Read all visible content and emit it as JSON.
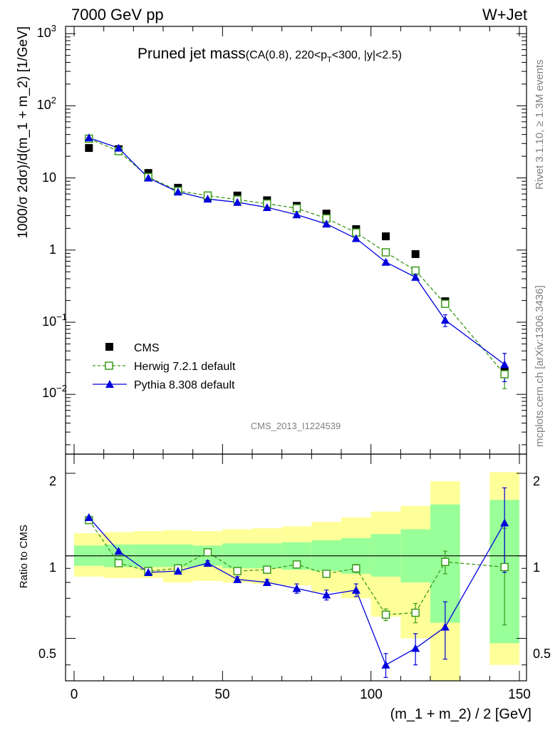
{
  "header": {
    "left": "7000 GeV pp",
    "right": "W+Jet"
  },
  "title": {
    "main": "Pruned jet mass",
    "cut_a": "(CA(0.8), 220<p",
    "cut_sub": "T",
    "cut_b": "<300, |y|<2.5)"
  },
  "side_labels": {
    "rivet": "Rivet 3.1.10, ≥ 1.3M events",
    "mcplots": "mcplots.cern.ch [arXiv:1306.3436]"
  },
  "watermark": "CMS_2013_I1224539",
  "axes": {
    "ylabel_main": "1000/σ 2dσ)/d(m_1 + m_2) [1/GeV]",
    "ylabel_ratio": "Ratio to CMS",
    "xlabel": "(m_1 + m_2) / 2 [GeV]",
    "x_ticks": [
      "0",
      "50",
      "100",
      "150"
    ],
    "main_tick_labels": {
      "e3": "10",
      "e3_exp": "3",
      "e2": "10",
      "e2_exp": "2",
      "e1": "10",
      "e0": "1",
      "em1": "10",
      "em1_exp": "−1",
      "em2": "10",
      "em2_exp": "−2"
    },
    "ratio_tick_labels": [
      "2",
      "1",
      "0.5"
    ]
  },
  "legend": {
    "cms": "CMS",
    "herwig": "Herwig 7.2.1 default",
    "pythia": "Pythia 8.308 default"
  },
  "colors": {
    "cms": "#000000",
    "herwig": "#3a9a1a",
    "pythia": "#0000dd",
    "band_inner": "#99ff99",
    "band_outer": "#ffff99"
  },
  "chart_data": [
    {
      "type": "scatter",
      "panel": "main",
      "xlabel": "",
      "ylabel": "1000/σ 2dσ)/d(m_1 + m_2) [1/GeV]",
      "xlim": [
        -5,
        150
      ],
      "ylim": [
        0.0008,
        1300
      ],
      "log_y": true,
      "grid": false,
      "legend_position": "lower-left",
      "bins": [
        [
          0,
          10
        ],
        [
          10,
          20
        ],
        [
          20,
          30
        ],
        [
          30,
          40
        ],
        [
          40,
          50
        ],
        [
          50,
          60
        ],
        [
          60,
          70
        ],
        [
          70,
          80
        ],
        [
          80,
          90
        ],
        [
          90,
          100
        ],
        [
          100,
          110
        ],
        [
          110,
          120
        ],
        [
          120,
          130
        ],
        [
          140,
          150
        ]
      ],
      "series": [
        {
          "name": "CMS",
          "x": [
            5,
            15,
            25,
            35,
            45,
            55,
            65,
            75,
            85,
            95,
            105,
            115,
            125,
            145
          ],
          "y": [
            26,
            25,
            11.7,
            7.3,
            5.5,
            5.7,
            4.9,
            4.1,
            3.2,
            1.95,
            1.55,
            0.88,
            0.195,
            0.021
          ]
        },
        {
          "name": "Herwig 7.2.1 default",
          "x": [
            5,
            15,
            25,
            35,
            45,
            55,
            65,
            75,
            85,
            95,
            105,
            115,
            125,
            145
          ],
          "y": [
            35,
            23.5,
            10.3,
            6.6,
            5.7,
            5.0,
            4.4,
            3.8,
            2.75,
            1.75,
            0.93,
            0.52,
            0.18,
            0.019
          ],
          "yerr": [
            0,
            0,
            0,
            0,
            0,
            0,
            0,
            0,
            0,
            0,
            0,
            0.03,
            0.015,
            0.007
          ]
        },
        {
          "name": "Pythia 8.308 default",
          "x": [
            5,
            15,
            25,
            35,
            45,
            55,
            65,
            75,
            85,
            95,
            105,
            115,
            125,
            145
          ],
          "y": [
            36,
            26,
            10,
            6.4,
            5.1,
            4.6,
            3.9,
            3.1,
            2.3,
            1.45,
            0.68,
            0.42,
            0.107,
            0.026
          ],
          "yerr": [
            0,
            0,
            0,
            0,
            0,
            0,
            0,
            0,
            0,
            0,
            0.04,
            0.03,
            0.02,
            0.011
          ]
        }
      ]
    },
    {
      "type": "scatter",
      "panel": "ratio",
      "xlabel": "(m_1 + m_2) / 2 [GeV]",
      "ylabel": "Ratio to CMS",
      "xlim": [
        -5,
        150
      ],
      "ylim": [
        0.35,
        2.35
      ],
      "log_y": true,
      "reference_line": 1,
      "bins": [
        [
          0,
          10
        ],
        [
          10,
          20
        ],
        [
          20,
          30
        ],
        [
          30,
          40
        ],
        [
          40,
          50
        ],
        [
          50,
          60
        ],
        [
          60,
          70
        ],
        [
          70,
          80
        ],
        [
          80,
          90
        ],
        [
          90,
          100
        ],
        [
          100,
          110
        ],
        [
          110,
          120
        ],
        [
          120,
          130
        ],
        [
          140,
          150
        ]
      ],
      "bands": {
        "inner_low": [
          0.92,
          0.91,
          0.91,
          0.91,
          0.92,
          0.9,
          0.9,
          0.89,
          0.88,
          0.86,
          0.84,
          0.8,
          0.57,
          0.48
        ],
        "inner_high": [
          1.09,
          1.1,
          1.1,
          1.1,
          1.09,
          1.11,
          1.11,
          1.12,
          1.14,
          1.16,
          1.2,
          1.25,
          1.54,
          1.6
        ],
        "outer_low": [
          0.84,
          0.83,
          0.83,
          0.8,
          0.81,
          0.8,
          0.79,
          0.78,
          0.74,
          0.7,
          0.6,
          0.5,
          0.33,
          0.4
        ],
        "outer_high": [
          1.21,
          1.22,
          1.23,
          1.24,
          1.23,
          1.25,
          1.26,
          1.28,
          1.33,
          1.38,
          1.45,
          1.52,
          1.87,
          2.02
        ]
      },
      "series": [
        {
          "name": "Herwig 7.2.1 default",
          "x": [
            5,
            15,
            25,
            35,
            45,
            55,
            65,
            75,
            85,
            95,
            105,
            115,
            125,
            145
          ],
          "y": [
            1.35,
            0.94,
            0.88,
            0.9,
            1.03,
            0.88,
            0.89,
            0.93,
            0.86,
            0.9,
            0.61,
            0.62,
            0.95,
            0.91
          ],
          "yerr": [
            0,
            0,
            0,
            0,
            0.03,
            0,
            0,
            0,
            0,
            0.03,
            0.03,
            0.05,
            0.09,
            0.35
          ]
        },
        {
          "name": "Pythia 8.308 default",
          "x": [
            5,
            15,
            25,
            35,
            45,
            55,
            65,
            75,
            85,
            95,
            105,
            115,
            125,
            145
          ],
          "y": [
            1.38,
            1.04,
            0.87,
            0.88,
            0.94,
            0.82,
            0.8,
            0.76,
            0.72,
            0.75,
            0.4,
            0.46,
            0.55,
            1.32
          ],
          "yerr": [
            0,
            0,
            0,
            0,
            0.02,
            0.02,
            0.02,
            0.03,
            0.03,
            0.04,
            0.04,
            0.06,
            0.13,
            0.45
          ]
        }
      ]
    }
  ]
}
